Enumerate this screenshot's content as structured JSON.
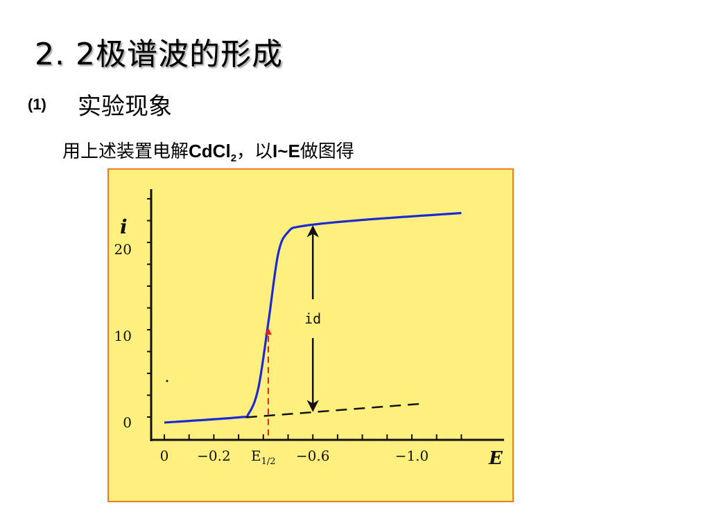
{
  "slide": {
    "title": "2. 2极谱波的形成",
    "subtitle_num": "(1)",
    "subtitle_text": "实验现象",
    "desc_prefix": "用上述装置电解",
    "desc_chem": "CdCl",
    "desc_chem_sub": "2",
    "desc_mid": "，以",
    "desc_var": "I~E",
    "desc_suffix": "做图得"
  },
  "chart_data": {
    "type": "line",
    "title": "",
    "xlabel": "E",
    "ylabel": "i",
    "x_axis_direction": "reversed (more negative to the right)",
    "xlim": [
      0.05,
      -1.35
    ],
    "ylim": [
      -2,
      27
    ],
    "x_ticks": [
      0,
      -0.2,
      -0.4,
      -0.6,
      -1.0
    ],
    "x_tick_labels": [
      "0",
      "−0.2",
      "E1/2",
      "−0.6",
      "−1.0"
    ],
    "y_ticks": [
      0,
      10,
      20
    ],
    "y_tick_labels": [
      "0",
      "10",
      "20"
    ],
    "series": [
      {
        "style": "solid",
        "color": "#1b2ad6",
        "points": [
          [
            0.0,
            0.0
          ],
          [
            -0.3,
            0.6
          ],
          [
            -0.34,
            1.0
          ],
          [
            -0.38,
            4.0
          ],
          [
            -0.42,
            11.5
          ],
          [
            -0.46,
            19.5
          ],
          [
            -0.5,
            22.0
          ],
          [
            -0.56,
            22.7
          ],
          [
            -0.8,
            23.4
          ],
          [
            -1.2,
            24.2
          ]
        ]
      },
      {
        "style": "dashed",
        "color": "#111111",
        "points": [
          [
            -0.33,
            0.6
          ],
          [
            -1.05,
            2.2
          ]
        ]
      }
    ],
    "annotations": [
      {
        "label": "id",
        "type": "double-arrow",
        "x": -0.6,
        "y_from": 1.2,
        "y_to": 22.8
      },
      {
        "label": "E1/2",
        "type": "dashed-line",
        "color": "#e02020",
        "x": -0.42,
        "y_from": -1.5,
        "y_to": 11.5
      }
    ]
  }
}
